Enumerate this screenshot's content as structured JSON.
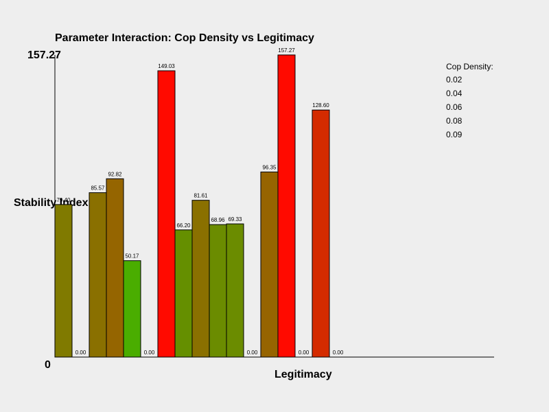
{
  "chart_data": {
    "type": "bar",
    "title": "Parameter Interaction: Cop Density vs Legitimacy",
    "xlabel": "Legitimacy",
    "ylabel": "Stability Index",
    "ylim": [
      0,
      157.27
    ],
    "y_tick_labels": [
      "0",
      "157.27"
    ],
    "legend": {
      "title": "Cop Density:",
      "entries": [
        "0.02",
        "0.04",
        "0.06",
        "0.08",
        "0.09"
      ],
      "placement": "top-right"
    },
    "bars": [
      {
        "value": 79.4,
        "label": "79.40",
        "color": "#807a00"
      },
      {
        "value": 0.0,
        "label": "0.00",
        "color": "#807a00"
      },
      {
        "value": 85.57,
        "label": "85.57",
        "color": "#8a7000"
      },
      {
        "value": 92.82,
        "label": "92.82",
        "color": "#956500"
      },
      {
        "value": 50.17,
        "label": "50.17",
        "color": "#4aad00"
      },
      {
        "value": 0.0,
        "label": "0.00",
        "color": "#4aad00"
      },
      {
        "value": 149.03,
        "label": "149.03",
        "color": "#ff0a00"
      },
      {
        "value": 66.2,
        "label": "66.20",
        "color": "#658f00"
      },
      {
        "value": 81.61,
        "label": "81.61",
        "color": "#8a7000"
      },
      {
        "value": 68.96,
        "label": "68.96",
        "color": "#6b8c00"
      },
      {
        "value": 69.33,
        "label": "69.33",
        "color": "#6b8c00"
      },
      {
        "value": 0.0,
        "label": "0.00",
        "color": "#6b8c00"
      },
      {
        "value": 96.35,
        "label": "96.35",
        "color": "#966400"
      },
      {
        "value": 157.27,
        "label": "157.27",
        "color": "#ff0a00"
      },
      {
        "value": 0.0,
        "label": "0.00",
        "color": "#ff0a00"
      },
      {
        "value": 128.6,
        "label": "128.60",
        "color": "#d42b00"
      },
      {
        "value": 0.0,
        "label": "0.00",
        "color": "#d42b00"
      }
    ]
  }
}
